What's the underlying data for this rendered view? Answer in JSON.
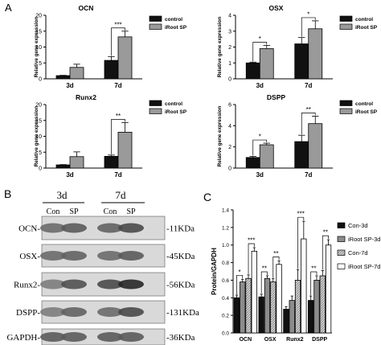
{
  "panels": {
    "a": "A",
    "b": "B",
    "c": "C"
  },
  "chart_data": [
    {
      "type": "bar",
      "title": "OCN",
      "ylabel": "Relative gene expression",
      "categories": [
        "3d",
        "7d"
      ],
      "ylim": [
        0,
        20
      ],
      "yticks": [
        0,
        5,
        10,
        15,
        20
      ],
      "series": [
        {
          "name": "control",
          "values": [
            1.0,
            5.8
          ],
          "errors": [
            0.1,
            1.2
          ],
          "color": "#111111"
        },
        {
          "name": "iRoot SP",
          "values": [
            3.6,
            13.2
          ],
          "errors": [
            1.0,
            1.8
          ],
          "color": "#9a9a9a"
        }
      ],
      "significance": [
        {
          "category": "7d",
          "label": "***"
        }
      ],
      "legend": "top-right"
    },
    {
      "type": "bar",
      "title": "OSX",
      "ylabel": "Relative gene expression",
      "categories": [
        "3d",
        "7d"
      ],
      "ylim": [
        0,
        4
      ],
      "yticks": [
        0,
        1,
        2,
        3,
        4
      ],
      "series": [
        {
          "name": "control",
          "values": [
            1.0,
            2.2
          ],
          "errors": [
            0.05,
            0.4
          ],
          "color": "#111111"
        },
        {
          "name": "iRoot SP",
          "values": [
            1.9,
            3.15
          ],
          "errors": [
            0.2,
            0.5
          ],
          "color": "#9a9a9a"
        }
      ],
      "significance": [
        {
          "category": "3d",
          "label": "*"
        },
        {
          "category": "7d",
          "label": "*"
        }
      ],
      "legend": "top-right"
    },
    {
      "type": "bar",
      "title": "Runx2",
      "ylabel": "Relative gene expression",
      "categories": [
        "3d",
        "7d"
      ],
      "ylim": [
        0,
        20
      ],
      "yticks": [
        0,
        5,
        10,
        15,
        20
      ],
      "series": [
        {
          "name": "control",
          "values": [
            1.0,
            3.7
          ],
          "errors": [
            0.1,
            0.4
          ],
          "color": "#111111"
        },
        {
          "name": "iRoot SP",
          "values": [
            3.6,
            11.3
          ],
          "errors": [
            1.5,
            3.0
          ],
          "color": "#9a9a9a"
        }
      ],
      "significance": [
        {
          "category": "7d",
          "label": "**"
        }
      ],
      "legend": "top-right"
    },
    {
      "type": "bar",
      "title": "DSPP",
      "ylabel": "Relative gene expression",
      "categories": [
        "3d",
        "7d"
      ],
      "ylim": [
        0,
        6
      ],
      "yticks": [
        0,
        2,
        4,
        6
      ],
      "series": [
        {
          "name": "control",
          "values": [
            1.0,
            2.5
          ],
          "errors": [
            0.1,
            0.6
          ],
          "color": "#111111"
        },
        {
          "name": "iRoot SP",
          "values": [
            2.2,
            4.2
          ],
          "errors": [
            0.15,
            0.7
          ],
          "color": "#9a9a9a"
        }
      ],
      "significance": [
        {
          "category": "3d",
          "label": "*"
        },
        {
          "category": "7d",
          "label": "**"
        }
      ],
      "legend": "top-right"
    },
    {
      "type": "bar",
      "title": "",
      "ylabel": "Protein/GAPDH",
      "categories": [
        "OCN",
        "OSX",
        "Runx2",
        "DSPP"
      ],
      "ylim": [
        0,
        1.4
      ],
      "yticks": [
        0.0,
        0.2,
        0.4,
        0.6,
        0.8,
        1.0,
        1.2,
        1.4
      ],
      "series": [
        {
          "name": "Con-3d",
          "values": [
            0.4,
            0.41,
            0.27,
            0.37
          ],
          "errors": [
            0.03,
            0.03,
            0.03,
            0.05
          ],
          "color": "#111111",
          "pattern": "solid"
        },
        {
          "name": "iRoot SP-3d",
          "values": [
            0.58,
            0.62,
            0.37,
            0.6
          ],
          "errors": [
            0.03,
            0.03,
            0.05,
            0.05
          ],
          "color": "#8c8c8c",
          "pattern": "solid"
        },
        {
          "name": "Con-7d",
          "values": [
            0.62,
            0.58,
            0.6,
            0.65
          ],
          "errors": [
            0.04,
            0.04,
            0.12,
            0.06
          ],
          "color": "#bdbdbd",
          "pattern": "hatch"
        },
        {
          "name": "iRoot SP-7d",
          "values": [
            0.93,
            0.78,
            1.07,
            1.0
          ],
          "errors": [
            0.04,
            0.04,
            0.2,
            0.06
          ],
          "color": "#ffffff",
          "pattern": "outline"
        }
      ],
      "significance": [
        {
          "category": "OCN",
          "pair": "3d",
          "label": "*"
        },
        {
          "category": "OCN",
          "pair": "7d",
          "label": "***"
        },
        {
          "category": "OSX",
          "pair": "3d",
          "label": "**"
        },
        {
          "category": "OSX",
          "pair": "7d",
          "label": "**"
        },
        {
          "category": "Runx2",
          "pair": "7d",
          "label": "***"
        },
        {
          "category": "DSPP",
          "pair": "3d",
          "label": "**"
        },
        {
          "category": "DSPP",
          "pair": "7d",
          "label": "**"
        }
      ],
      "legend": "right"
    }
  ],
  "blot": {
    "groups": [
      "3d",
      "7d"
    ],
    "lanes": [
      "Con",
      "SP",
      "Con",
      "SP"
    ],
    "rows": [
      {
        "protein": "OCN-",
        "mw": "-11KDa",
        "intensity": [
          0.55,
          0.65,
          0.6,
          0.75
        ]
      },
      {
        "protein": "OSX-",
        "mw": "-45KDa",
        "intensity": [
          0.55,
          0.6,
          0.55,
          0.65
        ]
      },
      {
        "protein": "Runx2-",
        "mw": "-56KDa",
        "intensity": [
          0.45,
          0.7,
          0.75,
          0.95
        ]
      },
      {
        "protein": "DSPP-",
        "mw": "-131KDa",
        "intensity": [
          0.45,
          0.6,
          0.55,
          0.75
        ]
      },
      {
        "protein": "GAPDH-",
        "mw": "-36KDa",
        "intensity": [
          0.65,
          0.65,
          0.65,
          0.65
        ]
      }
    ]
  }
}
